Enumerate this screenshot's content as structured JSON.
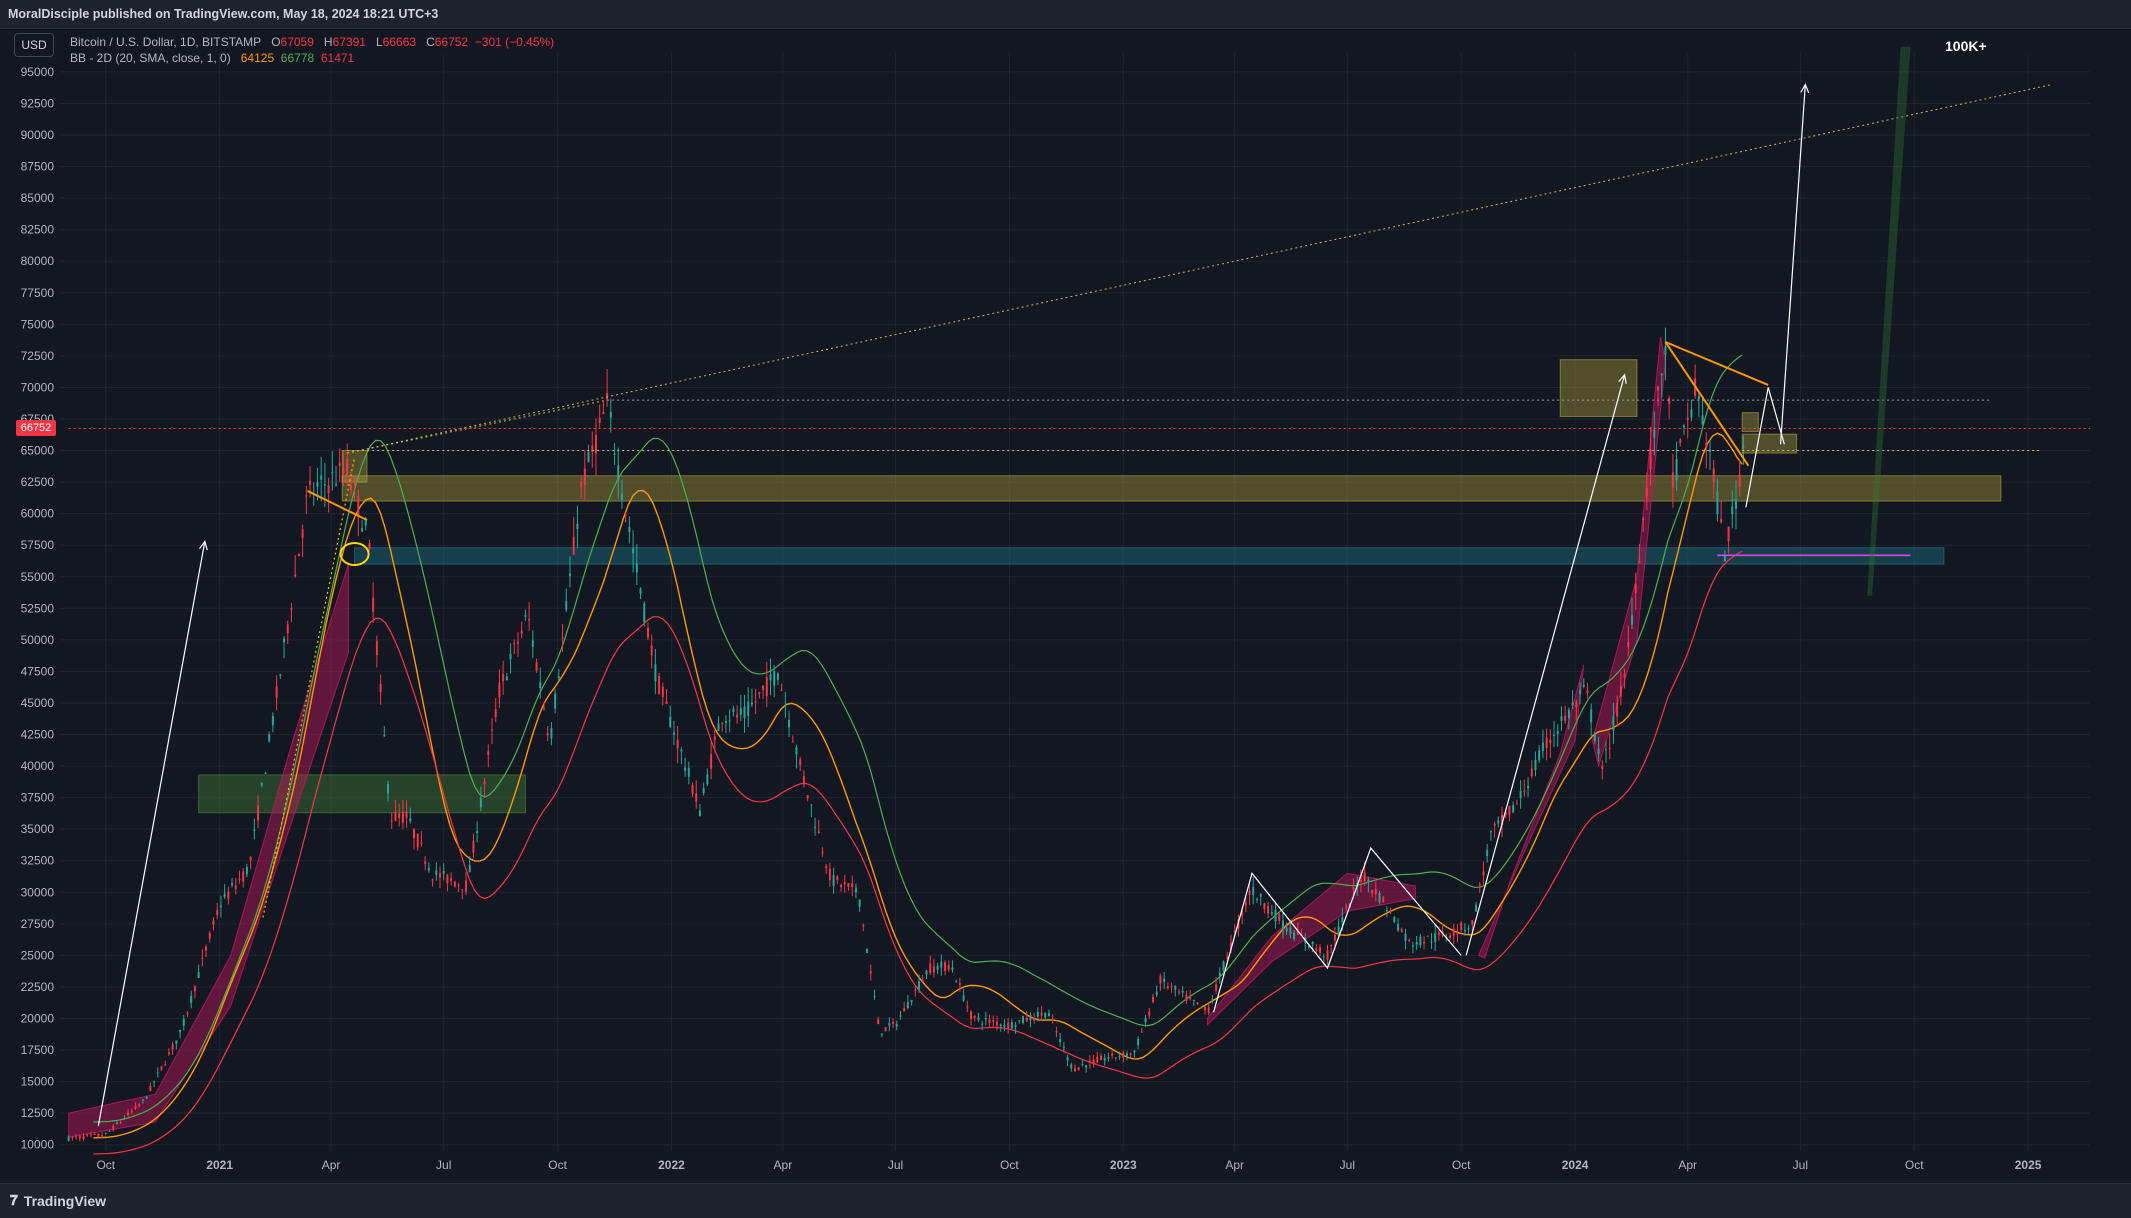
{
  "header": {
    "published_text": "MoralDisciple published on TradingView.com, May 18, 2024 18:21 UTC+3"
  },
  "currency_button": "USD",
  "legend": {
    "symbol": "Bitcoin / U.S. Dollar, 1D, BITSTAMP",
    "o_label": "O",
    "o_value": "67059",
    "h_label": "H",
    "h_value": "67391",
    "l_label": "L",
    "l_value": "66663",
    "c_label": "C",
    "c_value": "66752",
    "change": "−301 (−0.45%)",
    "bb_label": "BB - 2D (20, SMA, close, 1, 0)",
    "bb_basis": "64125",
    "bb_upper": "66778",
    "bb_lower": "61471"
  },
  "current_price_tag": "66752",
  "annotation": "100K+",
  "footer": {
    "logo_text": "TradingView",
    "timezone_icon": "clock-icon"
  },
  "colors": {
    "background": "#131722",
    "up": "#26a69a",
    "down": "#f23645",
    "basis": "#ff9800",
    "upper": "#4caf50",
    "lower": "#f23645",
    "zone_yellow": "#b8a93a",
    "zone_teal": "#1f7f8f",
    "zone_green": "#4a8a3a",
    "arc_fill": "#c2185b"
  },
  "chart_data": {
    "type": "line",
    "title": "Bitcoin / U.S. Dollar, 1D, BITSTAMP",
    "y_axis": {
      "ticks": [
        10000,
        12500,
        15000,
        17500,
        20000,
        22500,
        25000,
        27500,
        30000,
        32500,
        35000,
        37500,
        40000,
        42500,
        45000,
        47500,
        50000,
        52500,
        55000,
        57500,
        60000,
        62500,
        65000,
        67500,
        70000,
        72500,
        75000,
        77500,
        80000,
        82500,
        85000,
        87500,
        90000,
        92500,
        95000
      ],
      "ylim": [
        9500,
        96500
      ]
    },
    "x_axis": {
      "tick_labels": [
        "Oct",
        "2021",
        "Apr",
        "Jul",
        "Oct",
        "2022",
        "Apr",
        "Jul",
        "Oct",
        "2023",
        "Apr",
        "Jul",
        "Oct",
        "2024",
        "Apr",
        "Jul",
        "Oct",
        "2025"
      ],
      "tick_dates": [
        "2020-10-01",
        "2021-01-01",
        "2021-04-01",
        "2021-07-01",
        "2021-10-01",
        "2022-01-01",
        "2022-04-01",
        "2022-07-01",
        "2022-10-01",
        "2023-01-01",
        "2023-04-01",
        "2023-07-01",
        "2023-10-01",
        "2024-01-01",
        "2024-04-01",
        "2024-07-01",
        "2024-10-01",
        "2025-01-01"
      ],
      "xlim": [
        "2020-08-25",
        "2025-02-20"
      ]
    },
    "series": [
      {
        "name": "BTCUSD",
        "x": [
          "2020-09-01",
          "2020-10-01",
          "2020-11-01",
          "2020-12-01",
          "2021-01-01",
          "2021-01-25",
          "2021-02-20",
          "2021-03-13",
          "2021-04-14",
          "2021-05-01",
          "2021-05-19",
          "2021-06-01",
          "2021-06-22",
          "2021-07-20",
          "2021-08-15",
          "2021-09-07",
          "2021-09-25",
          "2021-10-20",
          "2021-11-10",
          "2021-12-01",
          "2021-12-20",
          "2022-01-24",
          "2022-02-10",
          "2022-03-01",
          "2022-03-28",
          "2022-04-15",
          "2022-05-10",
          "2022-06-01",
          "2022-06-18",
          "2022-07-01",
          "2022-07-28",
          "2022-08-15",
          "2022-09-01",
          "2022-10-01",
          "2022-11-01",
          "2022-11-21",
          "2022-12-15",
          "2023-01-10",
          "2023-01-31",
          "2023-03-10",
          "2023-04-14",
          "2023-05-15",
          "2023-06-15",
          "2023-07-13",
          "2023-08-01",
          "2023-08-20",
          "2023-09-15",
          "2023-10-10",
          "2023-10-25",
          "2023-11-15",
          "2023-12-10",
          "2024-01-10",
          "2024-01-23",
          "2024-02-10",
          "2024-02-28",
          "2024-03-14",
          "2024-03-20",
          "2024-04-08",
          "2024-04-20",
          "2024-05-01",
          "2024-05-10",
          "2024-05-18"
        ],
        "y": [
          10500,
          10800,
          13500,
          19000,
          29000,
          32000,
          48000,
          61500,
          63500,
          58000,
          36000,
          36000,
          31500,
          30500,
          46000,
          52000,
          42000,
          62000,
          68700,
          57000,
          47000,
          36500,
          44000,
          44000,
          47500,
          40000,
          31000,
          30000,
          19000,
          19500,
          24000,
          24200,
          20000,
          19500,
          20500,
          16000,
          16800,
          17300,
          23000,
          20500,
          30300,
          27000,
          25000,
          31500,
          29000,
          26000,
          26500,
          27500,
          34500,
          37000,
          42000,
          46000,
          39500,
          47000,
          62000,
          73500,
          62500,
          70000,
          64000,
          57000,
          61000,
          66752
        ]
      }
    ],
    "bollinger": {
      "name": "BB - 2D (20, SMA, close, 1, 0)",
      "basis_last": 64125,
      "upper_last": 66778,
      "lower_last": 61471
    },
    "zones": [
      {
        "kind": "yellow",
        "x0": "2021-04-10",
        "x1": "2021-04-30",
        "y0": 62500,
        "y1": 65000
      },
      {
        "kind": "yellow",
        "x0": "2021-04-10",
        "x1": "2024-12-10",
        "y0": 61000,
        "y1": 63000
      },
      {
        "kind": "teal",
        "x0": "2021-04-20",
        "x1": "2024-10-25",
        "y0": 56000,
        "y1": 57300
      },
      {
        "kind": "green",
        "x0": "2020-12-15",
        "x1": "2021-09-05",
        "y0": 36300,
        "y1": 39300
      },
      {
        "kind": "yellow",
        "x0": "2023-12-20",
        "x1": "2024-02-20",
        "y0": 67700,
        "y1": 72200
      },
      {
        "kind": "yellow",
        "x0": "2024-05-15",
        "x1": "2024-06-28",
        "y0": 64800,
        "y1": 66300
      },
      {
        "kind": "yellow",
        "x0": "2024-05-15",
        "x1": "2024-05-28",
        "y0": 66500,
        "y1": 68000
      }
    ],
    "annotations_text": [
      "100K+"
    ],
    "grid": true
  }
}
